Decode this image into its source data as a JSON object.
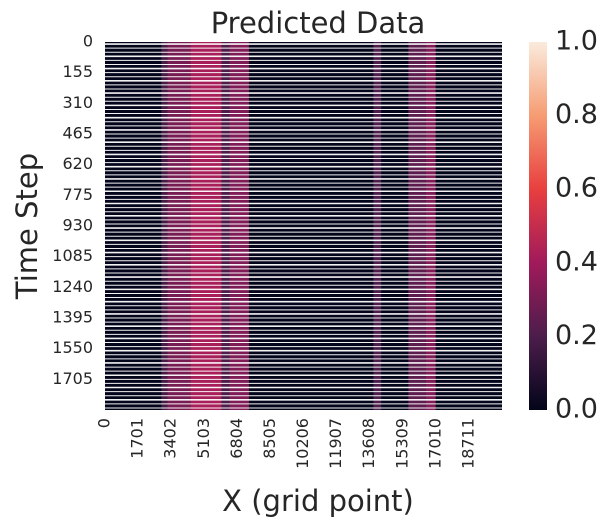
{
  "chart_data": {
    "type": "heatmap",
    "title": "Predicted Data",
    "xlabel": "X (grid point)",
    "ylabel": "Time Step",
    "x_ticks": [
      "0",
      "1701",
      "3402",
      "5103",
      "6804",
      "8505",
      "10206",
      "11907",
      "13608",
      "15309",
      "17010",
      "18711"
    ],
    "y_ticks": [
      "0",
      "155",
      "310",
      "465",
      "620",
      "775",
      "930",
      "1085",
      "1240",
      "1395",
      "1550",
      "1705"
    ],
    "x_range": [
      0,
      20412
    ],
    "y_range": [
      0,
      1860
    ],
    "colorbar": {
      "ticks": [
        "0.0",
        "0.2",
        "0.4",
        "0.6",
        "0.8",
        "1.0"
      ],
      "range": [
        0.0,
        1.0
      ],
      "colormap": [
        "#03051a",
        "#4c1d4b",
        "#a11a5b",
        "#e83f3f",
        "#f69c73",
        "#faebdd"
      ]
    },
    "bands": [
      {
        "x_start": 2900,
        "x_end": 3200,
        "value": 0.18
      },
      {
        "x_start": 3200,
        "x_end": 4400,
        "value": 0.3
      },
      {
        "x_start": 4400,
        "x_end": 6000,
        "value": 0.42
      },
      {
        "x_start": 6000,
        "x_end": 6400,
        "value": 0.2
      },
      {
        "x_start": 6400,
        "x_end": 7400,
        "value": 0.32
      },
      {
        "x_start": 13800,
        "x_end": 14200,
        "value": 0.2
      },
      {
        "x_start": 15600,
        "x_end": 16500,
        "value": 0.24
      },
      {
        "x_start": 16500,
        "x_end": 17000,
        "value": 0.32
      }
    ]
  }
}
